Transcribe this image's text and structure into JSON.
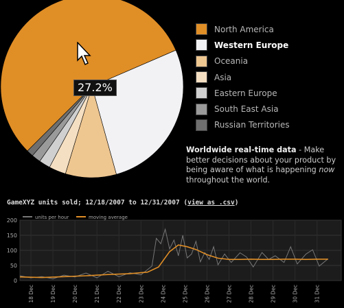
{
  "pie": {
    "tooltip": "27.2%",
    "legend": [
      {
        "label": "North America",
        "color": "#e08e26",
        "active": false
      },
      {
        "label": "Western Europe",
        "color": "#f2f2f4",
        "active": true
      },
      {
        "label": "Oceania",
        "color": "#eec690",
        "active": false
      },
      {
        "label": "Asia",
        "color": "#f5dfc2",
        "active": false
      },
      {
        "label": "Eastern Europe",
        "color": "#d0d0d0",
        "active": false
      },
      {
        "label": "South East Asia",
        "color": "#9a9a9a",
        "active": false
      },
      {
        "label": "Russian Territories",
        "color": "#6f6f6f",
        "active": false
      }
    ]
  },
  "blurb": {
    "bold": "Worldwide real-time data",
    "pre": " - Make better decisions about your product by being aware of what is happening ",
    "em": "now",
    "post": " throughout the world."
  },
  "sales": {
    "title": "GameXYZ units sold; 12/18/2007 to 12/31/2007 (",
    "link": "view as .csv",
    "close": ")"
  },
  "chart_data": [
    {
      "type": "pie",
      "categories": [
        "North America",
        "Western Europe",
        "Oceania",
        "Asia",
        "Eastern Europe",
        "South East Asia",
        "Russian Territories"
      ],
      "values": [
        56.0,
        27.2,
        9.0,
        3.0,
        2.0,
        1.6,
        1.2
      ],
      "colors": [
        "#e08e26",
        "#f2f2f4",
        "#eec690",
        "#f5dfc2",
        "#d0d0d0",
        "#9a9a9a",
        "#6f6f6f"
      ],
      "highlighted": "Western Europe",
      "label": "27.2%"
    },
    {
      "type": "line",
      "title": "GameXYZ units sold; 12/18/2007 to 12/31/2007",
      "categories": [
        "18 Dec",
        "19 Dec",
        "20 Dec",
        "21 Dec",
        "22 Dec",
        "23 Dec",
        "24 Dec",
        "25 Dec",
        "26 Dec",
        "27 Dec",
        "28 Dec",
        "29 Dec",
        "30 Dec",
        "31 Dec"
      ],
      "ylim": [
        0,
        200
      ],
      "yticks": [
        0,
        50,
        100,
        150,
        200
      ],
      "grid": true,
      "legend_position": "top-left",
      "series": [
        {
          "name": "units per hour",
          "color": "#777777",
          "x": [
            0,
            0.5,
            1,
            1.5,
            2,
            2.5,
            3,
            3.5,
            4,
            4.5,
            5,
            5.5,
            6,
            6.2,
            6.4,
            6.6,
            6.8,
            7,
            7.2,
            7.4,
            7.6,
            7.8,
            8,
            8.2,
            8.4,
            8.6,
            8.8,
            9,
            9.3,
            9.6,
            10,
            10.3,
            10.6,
            11,
            11.3,
            11.6,
            12,
            12.3,
            12.6,
            13,
            13.3,
            13.6,
            14
          ],
          "values": [
            16,
            9,
            13,
            6,
            18,
            12,
            25,
            9,
            31,
            13,
            26,
            19,
            48,
            140,
            122,
            170,
            105,
            134,
            82,
            150,
            75,
            88,
            130,
            62,
            93,
            70,
            112,
            52,
            88,
            60,
            92,
            78,
            45,
            93,
            70,
            82,
            60,
            112,
            55,
            88,
            102,
            48,
            72
          ]
        },
        {
          "name": "moving average",
          "color": "#e08e26",
          "x": [
            0,
            1,
            2,
            3,
            4,
            5,
            5.8,
            6.3,
            6.8,
            7.2,
            7.6,
            8,
            8.5,
            9,
            9.5,
            10,
            10.5,
            11,
            11.5,
            12,
            12.5,
            13,
            13.5,
            14
          ],
          "values": [
            12,
            10,
            13,
            16,
            20,
            23,
            28,
            45,
            96,
            118,
            112,
            103,
            86,
            74,
            70,
            70,
            71,
            70,
            70,
            71,
            71,
            70,
            71,
            71
          ]
        }
      ]
    }
  ]
}
